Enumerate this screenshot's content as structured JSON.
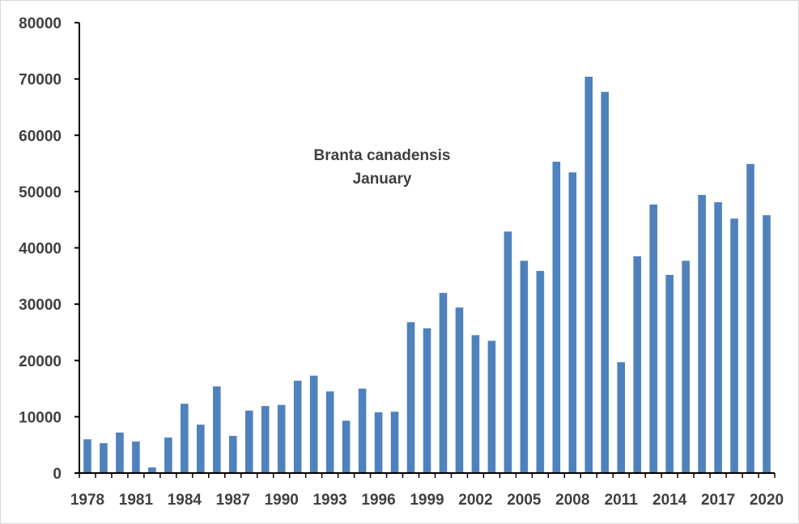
{
  "chart_data": {
    "type": "bar",
    "title": "",
    "xlabel": "",
    "ylabel": "",
    "annotation": [
      "Branta canadensis",
      "January"
    ],
    "categories": [
      "1978",
      "1979",
      "1980",
      "1981",
      "1982",
      "1983",
      "1984",
      "1985",
      "1986",
      "1987",
      "1988",
      "1989",
      "1990",
      "1991",
      "1992",
      "1993",
      "1994",
      "1995",
      "1996",
      "1997",
      "1998",
      "1999",
      "2000",
      "2001",
      "2002",
      "2003",
      "2004",
      "2005",
      "2006",
      "2007",
      "2008",
      "2009",
      "2010",
      "2011",
      "2012",
      "2013",
      "2014",
      "2015",
      "2016",
      "2017",
      "2018",
      "2019",
      "2020"
    ],
    "x_tick_labels": [
      "1978",
      "1981",
      "1984",
      "1987",
      "1990",
      "1993",
      "1996",
      "1999",
      "2002",
      "2005",
      "2008",
      "2011",
      "2014",
      "2017",
      "2020"
    ],
    "values": [
      6000,
      5300,
      7200,
      5600,
      1000,
      6300,
      12300,
      8600,
      15400,
      6600,
      11100,
      11900,
      12100,
      16400,
      17300,
      14500,
      9300,
      15000,
      10800,
      10900,
      26800,
      25700,
      32000,
      29400,
      24500,
      23500,
      42900,
      37700,
      35900,
      55300,
      53400,
      70400,
      67700,
      19700,
      38500,
      47700,
      35200,
      37700,
      49400,
      48100,
      45200,
      54900,
      45800
    ],
    "ylim": [
      0,
      80000
    ],
    "y_ticks": [
      0,
      10000,
      20000,
      30000,
      40000,
      50000,
      60000,
      70000,
      80000
    ],
    "grid": false,
    "legend": "none",
    "bar_color": "#4f81bd",
    "axis_color": "#000000",
    "text_color": "#404040"
  }
}
